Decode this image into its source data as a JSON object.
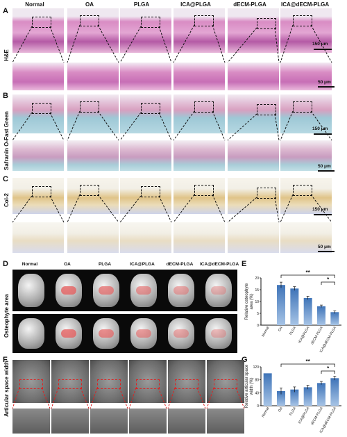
{
  "groups": [
    "Normal",
    "OA",
    "PLGA",
    "ICA@PLGA",
    "dECM-PLGA",
    "ICA@dECM-PLGA"
  ],
  "panel_letters": [
    "A",
    "B",
    "C",
    "D",
    "E",
    "F",
    "G"
  ],
  "row_labels": {
    "A": "H&E",
    "B": "Safranin O-Fast Green",
    "C": "Col-2",
    "D": "Osteophyte area",
    "F": "Articular space width"
  },
  "scale_labels": {
    "low": "150 μm",
    "high": "50 μm"
  },
  "colors": {
    "he": "#d98cc4",
    "he_dark": "#b45aa5",
    "saf_blue": "#9ec8d6",
    "saf_red": "#d8a0c0",
    "col_bg": "#f2efe6",
    "col_brown": "#e0c488",
    "col_blue": "#7f8fc8",
    "bar_top": "#a7c4e6",
    "bar_bottom": "#3f74b8"
  },
  "chart_data": [
    {
      "panel": "E",
      "type": "bar",
      "categories": [
        "Normal",
        "OA",
        "PLGA",
        "ICA@PLGA",
        "dECM-PLGA",
        "ICA@dECM-PLGA"
      ],
      "values": [
        0,
        17,
        15.5,
        11.5,
        8,
        5.5
      ],
      "errors": [
        0,
        1.2,
        0.8,
        0.7,
        0.5,
        0.6
      ],
      "ylabel": "Relative osteophyte area (%)",
      "yticks": [
        0,
        5,
        10,
        15,
        20
      ],
      "ylim": [
        0,
        20
      ],
      "significance": [
        "**",
        "*"
      ]
    },
    {
      "panel": "G",
      "type": "bar",
      "categories": [
        "Normal",
        "OA",
        "PLGA",
        "ICA@PLGA",
        "dECM-PLGA",
        "ICA@dECM-PLGA"
      ],
      "values": [
        100,
        45,
        50,
        57,
        70,
        85
      ],
      "errors": [
        0,
        10,
        8,
        6,
        5,
        6
      ],
      "ylabel": "Relative articular space width (%)",
      "yticks": [
        0,
        40,
        80,
        120
      ],
      "ylim": [
        0,
        120
      ],
      "significance": [
        "**",
        "*"
      ]
    }
  ]
}
